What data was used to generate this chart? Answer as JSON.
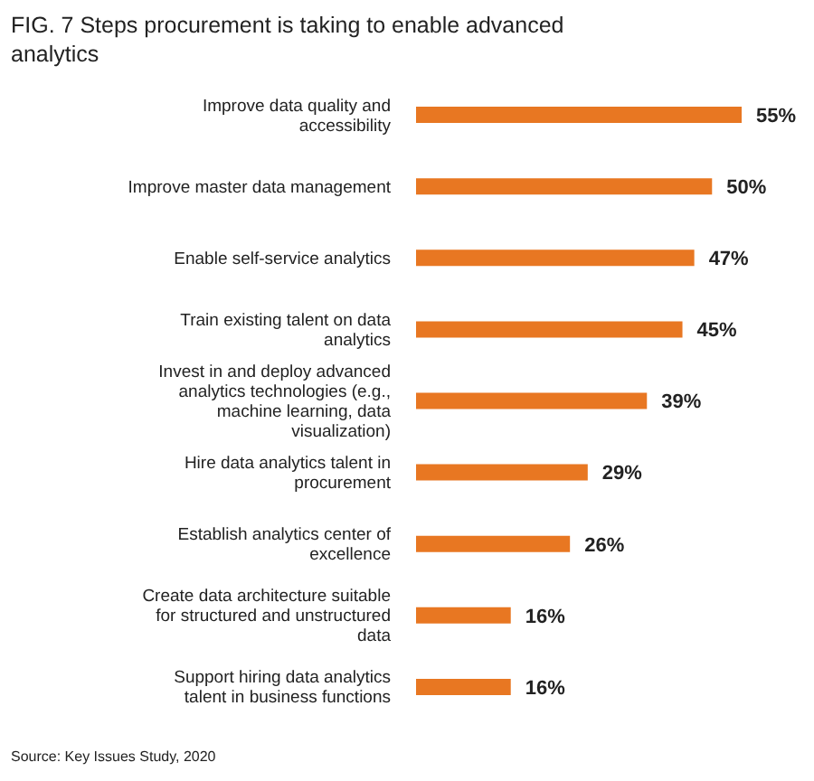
{
  "chart_data": {
    "type": "bar",
    "orientation": "horizontal",
    "title": "FIG. 7 Steps procurement is taking to enable advanced analytics",
    "categories": [
      "Improve data quality and accessibility",
      "Improve master data management",
      "Enable self-service analytics",
      "Train existing talent on data analytics",
      "Invest in and deploy advanced analytics technologies (e.g., machine learning, data visualization)",
      "Hire data analytics talent in procurement",
      "Establish analytics center of excellence",
      "Create data architecture suitable for structured and unstructured data",
      "Support hiring data analytics talent in business functions"
    ],
    "values": [
      55,
      50,
      47,
      45,
      39,
      29,
      26,
      16,
      16
    ],
    "value_labels": [
      "55%",
      "50%",
      "47%",
      "45%",
      "39%",
      "29%",
      "26%",
      "16%",
      "16%"
    ],
    "color": "#e87722",
    "annotations": [
      "Source: Key Issues Study, 2020"
    ]
  }
}
